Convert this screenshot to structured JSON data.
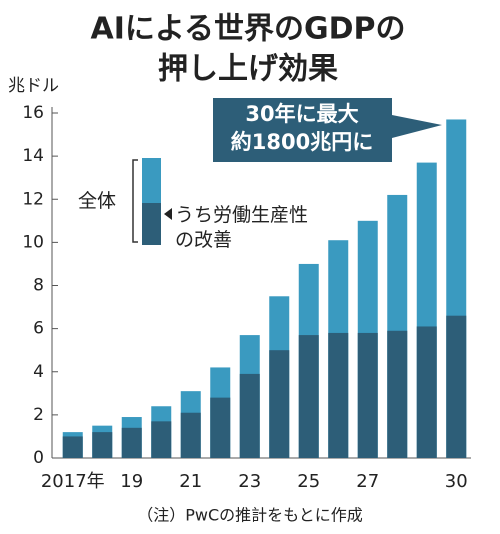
{
  "chart_data": {
    "type": "bar",
    "overlap": true,
    "title": [
      "AIによる世界のGDPの",
      "押し上げ効果"
    ],
    "y_label": "兆ドル",
    "categories": [
      "2017年",
      null,
      "19",
      null,
      "21",
      null,
      "23",
      null,
      "25",
      null,
      "27",
      null,
      null,
      "30"
    ],
    "series": [
      {
        "name": "全体",
        "color": "#3a9ac0",
        "values": [
          1.2,
          1.5,
          1.9,
          2.4,
          3.1,
          4.2,
          5.7,
          7.5,
          9.0,
          10.1,
          11.0,
          12.2,
          13.7,
          15.7
        ]
      },
      {
        "name": "うち労働生産性の改善",
        "color": "#2d5e78",
        "values": [
          1.0,
          1.2,
          1.4,
          1.7,
          2.1,
          2.8,
          3.9,
          5.0,
          5.7,
          5.8,
          5.8,
          5.9,
          6.1,
          6.6
        ]
      }
    ],
    "ylim": [
      0,
      16
    ],
    "yticks": [
      0,
      2,
      4,
      6,
      8,
      10,
      12,
      14,
      16
    ],
    "annotation": [
      "30年に最大",
      "約1800兆円に"
    ],
    "note": "（注）PwCの推計をもとに作成"
  }
}
